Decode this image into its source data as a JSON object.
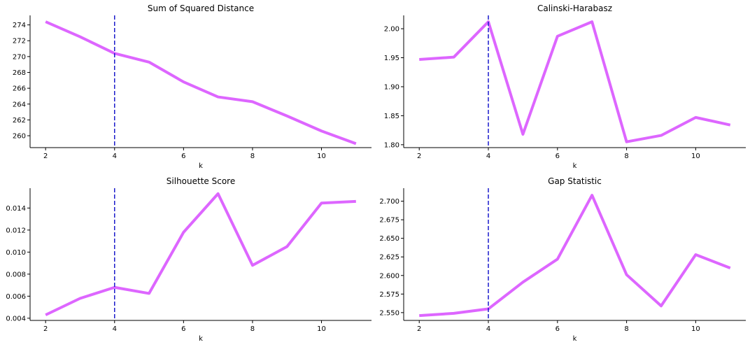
{
  "colors": {
    "line": "#dd66ff",
    "vline": "#1a1acc"
  },
  "chart_data": [
    {
      "type": "line",
      "title": "Sum of Squared Distance",
      "xlabel": "k",
      "ylabel": "",
      "x": [
        2,
        3,
        4,
        5,
        6,
        7,
        8,
        9,
        10,
        11
      ],
      "series": [
        {
          "values": [
            274.4,
            272.5,
            270.4,
            269.3,
            266.8,
            264.9,
            264.3,
            262.5,
            260.6,
            259.0
          ]
        }
      ],
      "xlim": [
        1.55,
        11.45
      ],
      "ylim": [
        258.5,
        275.2
      ],
      "xticks": [
        2,
        4,
        6,
        8,
        10
      ],
      "yticks": [
        260,
        262,
        264,
        266,
        268,
        270,
        272,
        274
      ],
      "yticklabels": [
        "260",
        "262",
        "264",
        "266",
        "268",
        "270",
        "272",
        "274"
      ],
      "vline_x": 4
    },
    {
      "type": "line",
      "title": "Calinski-Harabasz",
      "xlabel": "k",
      "ylabel": "",
      "x": [
        2,
        3,
        4,
        5,
        6,
        7,
        8,
        9,
        10,
        11
      ],
      "series": [
        {
          "values": [
            1.947,
            1.951,
            2.012,
            1.818,
            1.987,
            2.012,
            1.805,
            1.816,
            1.847,
            1.834
          ]
        }
      ],
      "xlim": [
        1.55,
        11.45
      ],
      "ylim": [
        1.795,
        2.023
      ],
      "xticks": [
        2,
        4,
        6,
        8,
        10
      ],
      "yticks": [
        1.8,
        1.85,
        1.9,
        1.95,
        2.0
      ],
      "yticklabels": [
        "1.80",
        "1.85",
        "1.90",
        "1.95",
        "2.00"
      ],
      "vline_x": 4
    },
    {
      "type": "line",
      "title": "Silhouette Score",
      "xlabel": "k",
      "ylabel": "",
      "x": [
        2,
        3,
        4,
        5,
        6,
        7,
        8,
        9,
        10,
        11
      ],
      "series": [
        {
          "values": [
            0.0043,
            0.0058,
            0.0068,
            0.00625,
            0.0118,
            0.0153,
            0.0088,
            0.0105,
            0.01445,
            0.0146
          ]
        }
      ],
      "xlim": [
        1.55,
        11.45
      ],
      "ylim": [
        0.0038,
        0.0158
      ],
      "xticks": [
        2,
        4,
        6,
        8,
        10
      ],
      "yticks": [
        0.004,
        0.006,
        0.008,
        0.01,
        0.012,
        0.014
      ],
      "yticklabels": [
        "0.004",
        "0.006",
        "0.008",
        "0.010",
        "0.012",
        "0.014"
      ],
      "vline_x": 4
    },
    {
      "type": "line",
      "title": "Gap Statistic",
      "xlabel": "k",
      "ylabel": "",
      "x": [
        2,
        3,
        4,
        5,
        6,
        7,
        8,
        9,
        10,
        11
      ],
      "series": [
        {
          "values": [
            2.546,
            2.549,
            2.555,
            2.591,
            2.622,
            2.708,
            2.601,
            2.559,
            2.628,
            2.61
          ]
        }
      ],
      "xlim": [
        1.55,
        11.45
      ],
      "ylim": [
        2.5395,
        2.7175
      ],
      "xticks": [
        2,
        4,
        6,
        8,
        10
      ],
      "yticks": [
        2.55,
        2.575,
        2.6,
        2.625,
        2.65,
        2.675,
        2.7
      ],
      "yticklabels": [
        "2.550",
        "2.575",
        "2.600",
        "2.625",
        "2.650",
        "2.675",
        "2.700"
      ],
      "vline_x": 4
    }
  ]
}
